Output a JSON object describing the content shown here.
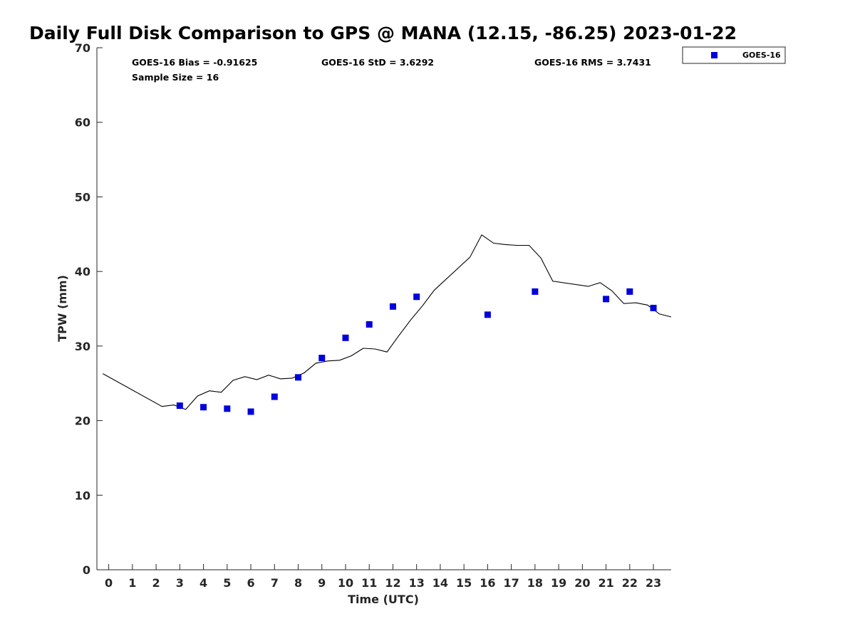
{
  "chart_data": {
    "type": "scatter",
    "title": "Daily Full Disk Comparison to GPS @ MANA (12.15, -86.25) 2023-01-22",
    "xlabel": "Time (UTC)",
    "ylabel": "TPW (mm)",
    "xlim": [
      -0.5,
      23.75
    ],
    "ylim": [
      0,
      70
    ],
    "xticks": [
      "0",
      "1",
      "2",
      "3",
      "4",
      "5",
      "6",
      "7",
      "8",
      "9",
      "10",
      "11",
      "12",
      "13",
      "14",
      "15",
      "16",
      "17",
      "18",
      "19",
      "20",
      "21",
      "22",
      "23"
    ],
    "yticks": [
      "0",
      "10",
      "20",
      "30",
      "40",
      "50",
      "60",
      "70"
    ],
    "grid": false,
    "legend_position": "top-right",
    "stats": {
      "bias": "GOES-16 Bias = -0.91625",
      "std": "GOES-16 StD = 3.6292",
      "rms": "GOES-16 RMS = 3.7431",
      "sample": "Sample Size = 16"
    },
    "series": [
      {
        "name": "GOES-16",
        "kind": "scatter",
        "color": "#0000dd",
        "x": [
          3,
          4,
          5,
          6,
          7,
          8,
          9,
          10,
          11,
          12,
          13,
          16,
          18,
          21,
          22,
          23
        ],
        "y": [
          22.0,
          21.8,
          21.6,
          21.2,
          23.2,
          25.8,
          28.4,
          31.1,
          32.9,
          35.3,
          36.6,
          34.2,
          37.3,
          36.3,
          37.3,
          35.1
        ]
      },
      {
        "kind": "line",
        "color": "#000000",
        "x": [
          -0.25,
          2.25,
          2.75,
          3.25,
          3.75,
          4.25,
          4.75,
          5.25,
          5.75,
          6.25,
          6.75,
          7.25,
          7.75,
          8.25,
          8.75,
          9.25,
          9.75,
          10.25,
          10.75,
          11.25,
          11.75,
          12.25,
          12.75,
          13.25,
          13.75,
          15.25,
          15.75,
          16.25,
          16.75,
          17.25,
          17.75,
          18.25,
          18.75,
          20.25,
          20.75,
          21.25,
          21.75,
          22.25,
          22.75,
          23.25,
          23.75
        ],
        "y": [
          26.3,
          21.9,
          22.1,
          21.5,
          23.3,
          24.0,
          23.8,
          25.4,
          25.9,
          25.5,
          26.1,
          25.6,
          25.7,
          26.4,
          27.7,
          28.0,
          28.1,
          28.7,
          29.7,
          29.6,
          29.2,
          31.4,
          33.5,
          35.4,
          37.5,
          41.9,
          44.9,
          43.8,
          43.6,
          43.5,
          43.5,
          41.8,
          38.7,
          38.0,
          38.5,
          37.4,
          35.7,
          35.8,
          35.5,
          34.3,
          33.9
        ]
      }
    ]
  }
}
